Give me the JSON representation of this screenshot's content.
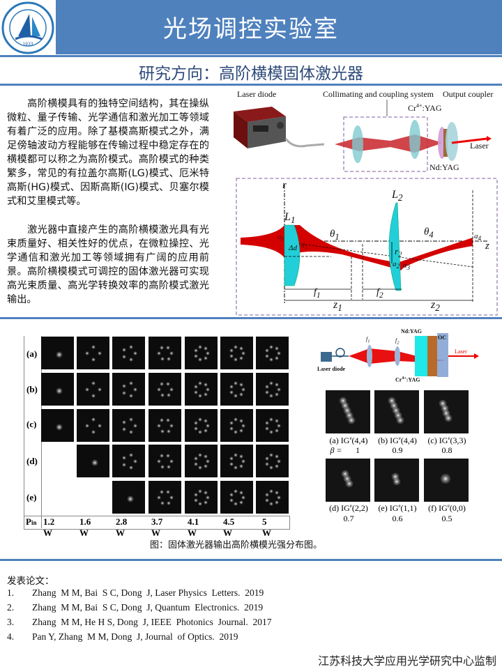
{
  "header": {
    "title": "光场调控实验室",
    "logo_text": "江苏科技大学",
    "logo_year": "1933"
  },
  "subtitle": "研究方向：高阶横模固体激光器",
  "paragraphs": [
    "高阶横模具有的独特空间结构，其在操纵微粒、量子传输、光学通信和激光加工等领域有着广泛的应用。除了基模高斯模式之外，满足傍轴波动方程能够在传输过程中稳定存在的横模都可以称之为高阶模式。高阶模式的种类繁多，常见的有拉盖尔高斯(LG)模式、厄米特高斯(HG)模式、因斯高斯(IG)模式、贝塞尔模式和艾里模式等。",
    "激光器中直接产生的高阶横模激光具有光束质量好、相关性好的优点，在微粒操控、光学通信和激光加工等领域拥有广阔的应用前景。高阶横模模式可调控的固体激光器可实现高光束质量、高光学转换效率的高阶模式激光输出。"
  ],
  "setup_figure": {
    "labels": {
      "laser_diode": "Laser diode",
      "collimating": "Collimating and coupling system",
      "output_coupler": "Output coupler",
      "cr": "Cr",
      "cr_sup": "4+",
      "cr_rest": ":YAG",
      "nd": "Nd:YAG",
      "laser": "Laser"
    },
    "symbols": {
      "r": "r",
      "z": "z",
      "L1": "L",
      "L1_sub": "1",
      "L2": "L",
      "L2_sub": "2",
      "theta1": "θ",
      "theta1_sub": "1",
      "theta4": "θ",
      "theta4_sub": "4",
      "a0": "a",
      "a0_sub": "0",
      "a1": "d",
      "a1_sub": "1",
      "a2": "a",
      "a2_sub": "2",
      "a3": "a",
      "a3_sub": "3",
      "a4": "a",
      "a4_sub": "4",
      "delta_d": "Δd",
      "r2": "r",
      "r2_sub": "2",
      "f1": "f",
      "f1_sub": "1",
      "f2": "f",
      "f2_sub": "2",
      "z1": "z",
      "z1_sub": "1",
      "z2": "z",
      "z2_sub": "2"
    }
  },
  "mode_grid": {
    "rows": [
      "(a)",
      "(b)",
      "(c)",
      "(d)",
      "(e)"
    ],
    "pin_label": "P",
    "pin_sub": "in",
    "powers": [
      "1.2 W",
      "1.6 W",
      "2.8 W",
      "3.7 W",
      "4.1 W",
      "4.5 W",
      "5 W"
    ]
  },
  "ig_figure": {
    "labels": {
      "laser_diode": "Laser diode",
      "f1": "f",
      "f1_sub": "1",
      "f2": "f",
      "f2_sub": "2",
      "nd": "Nd:YAG",
      "oc": "OC",
      "laser": "Laser",
      "cr": "Cr",
      "cr_sup": "4+",
      "cr_rest": ":YAG"
    },
    "beta_label": "β =",
    "items": [
      {
        "tag": "(a)",
        "mode": "IG",
        "sup": "e",
        "idx": "(4,4)",
        "beta": "1"
      },
      {
        "tag": "(b)",
        "mode": "IG",
        "sup": "e",
        "idx": "(4,4)",
        "beta": "0.9"
      },
      {
        "tag": "(c)",
        "mode": "IG",
        "sup": "e",
        "idx": "(3,3)",
        "beta": "0.8"
      },
      {
        "tag": "(d)",
        "mode": "IG",
        "sup": "e",
        "idx": "(2,2)",
        "beta": "0.7"
      },
      {
        "tag": "(e)",
        "mode": "IG",
        "sup": "e",
        "idx": "(1,1)",
        "beta": "0.6"
      },
      {
        "tag": "(f)",
        "mode": "IG",
        "sup": "e",
        "idx": "(0,0)",
        "beta": "0.5"
      }
    ]
  },
  "figure_caption": "图：固体激光器输出高阶横模光强分布图。",
  "publications": {
    "heading": "发表论文：",
    "items": [
      {
        "num": "1.",
        "text": "Zhang  M M, Bai  S C, Dong  J, Laser Physics  Letters.  2019"
      },
      {
        "num": "2.",
        "text": "Zhang  M M, Bai  S C, Dong  J, Quantum  Electronics.  2019"
      },
      {
        "num": "3.",
        "text": "Zhang  M M, He H S, Dong  J, IEEE  Photonics  Journal.  2017"
      },
      {
        "num": "4.",
        "text": "Pan Y, Zhang  M M, Dong  J, Journal  of Optics.  2019"
      }
    ]
  },
  "footer": "江苏科技大学应用光学研究中心监制",
  "colors": {
    "brand_blue": "#4f81bd",
    "beam_red": "#d40000",
    "lens_cyan": "#2ad4dc",
    "box_purple": "#9b7fb0"
  }
}
